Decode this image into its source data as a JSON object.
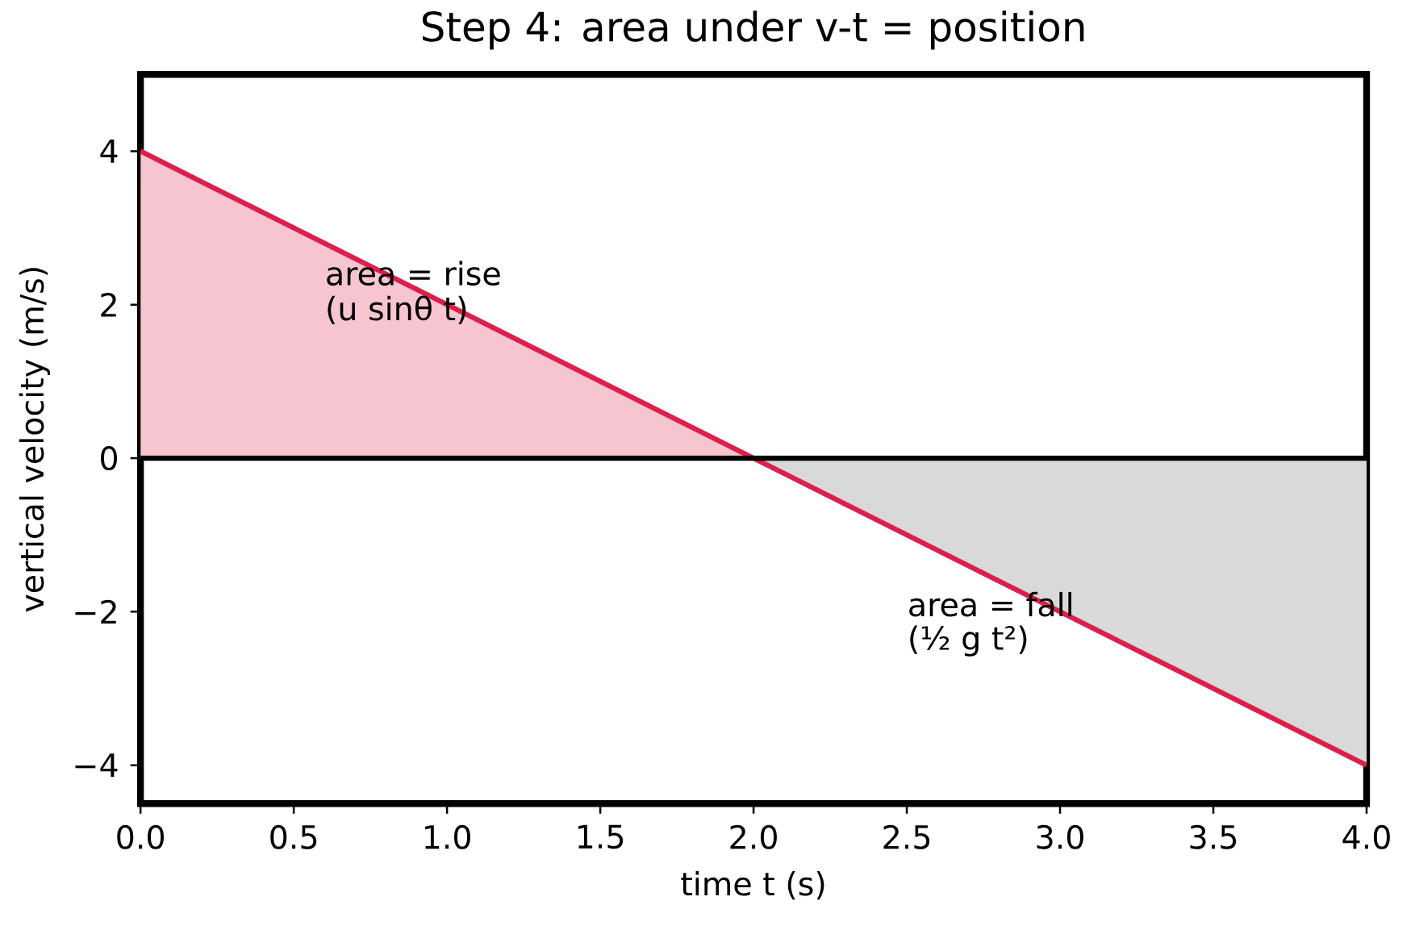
{
  "chart_data": {
    "type": "line",
    "title": "Step 4: area under v-t = position",
    "xlabel": "time t (s)",
    "ylabel": "vertical velocity (m/s)",
    "xlim": [
      0,
      4
    ],
    "ylim": [
      -4.5,
      5
    ],
    "xticks": [
      {
        "value": 0,
        "label": "0.0"
      },
      {
        "value": 0.5,
        "label": "0.5"
      },
      {
        "value": 1,
        "label": "1.0"
      },
      {
        "value": 1.5,
        "label": "1.5"
      },
      {
        "value": 2,
        "label": "2.0"
      },
      {
        "value": 2.5,
        "label": "2.5"
      },
      {
        "value": 3,
        "label": "3.0"
      },
      {
        "value": 3.5,
        "label": "3.5"
      },
      {
        "value": 4,
        "label": "4.0"
      }
    ],
    "yticks": [
      {
        "value": -4,
        "label": "−4"
      },
      {
        "value": -2,
        "label": "−2"
      },
      0,
      2,
      4
    ],
    "series": [
      {
        "type": "area",
        "color": "#f7c5cf",
        "x": [
          0,
          2
        ],
        "values": [
          4,
          0
        ]
      },
      {
        "type": "area",
        "color": "#d9d9d9",
        "x": [
          2,
          4
        ],
        "values": [
          0,
          -4
        ]
      },
      {
        "color": "#dc1f4b",
        "x": [
          0,
          4
        ],
        "values": [
          4,
          -4
        ]
      }
    ],
    "ref_lines": [
      {
        "axis": "y",
        "value": 0,
        "color": "#000000"
      }
    ],
    "annotations": [
      "area = rise",
      "(u sinθ t)",
      "area = fall",
      "(½ g t²)"
    ]
  }
}
